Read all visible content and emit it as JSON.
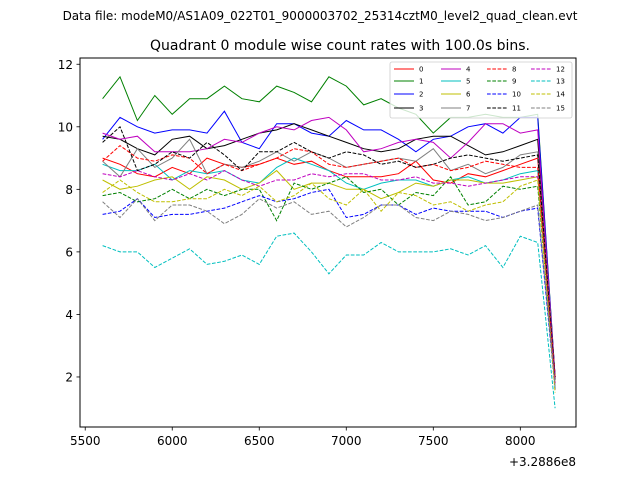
{
  "suptitle": "Data file: modeM0/AS1A09_022T01_9000003702_25314cztM0_level2_quad_clean.evt",
  "chart_data": {
    "type": "line",
    "title": "Quadrant 0 module wise count rates with 100.0s bins.",
    "xlabel": "",
    "ylabel": "",
    "x_offset_label": "+3.2886e8",
    "xlim": [
      5470,
      8320
    ],
    "ylim": [
      0.4,
      12.2
    ],
    "xticks": [
      5500,
      6000,
      6500,
      7000,
      7500,
      8000
    ],
    "yticks": [
      2,
      4,
      6,
      8,
      10,
      12
    ],
    "grid": false,
    "legend_position": "top-right",
    "x": [
      5600,
      5700,
      5800,
      5900,
      6000,
      6100,
      6200,
      6300,
      6400,
      6500,
      6600,
      6700,
      6800,
      6900,
      7000,
      7100,
      7200,
      7300,
      7400,
      7500,
      7600,
      7700,
      7800,
      7900,
      8000,
      8100,
      8200
    ],
    "series": [
      {
        "name": "0",
        "color": "#ff0000",
        "dash": "solid",
        "values": [
          9.0,
          8.8,
          8.5,
          8.4,
          8.7,
          8.5,
          9.0,
          8.8,
          8.7,
          8.8,
          9.0,
          8.8,
          8.9,
          8.6,
          8.4,
          8.4,
          8.4,
          8.5,
          8.9,
          8.3,
          8.2,
          8.5,
          8.4,
          8.6,
          8.8,
          9.0,
          2.0
        ]
      },
      {
        "name": "1",
        "color": "#008000",
        "dash": "solid",
        "values": [
          10.9,
          11.6,
          10.2,
          11.0,
          10.4,
          10.9,
          10.9,
          11.3,
          10.9,
          10.8,
          11.3,
          11.1,
          10.8,
          11.6,
          11.3,
          10.7,
          10.9,
          10.6,
          10.4,
          9.8,
          10.3,
          10.3,
          10.4,
          10.3,
          10.3,
          10.4,
          2.0
        ]
      },
      {
        "name": "2",
        "color": "#0000ff",
        "dash": "solid",
        "values": [
          9.6,
          10.3,
          10.0,
          9.8,
          9.9,
          9.9,
          9.8,
          10.5,
          9.5,
          9.3,
          10.1,
          10.1,
          9.8,
          9.7,
          10.2,
          9.9,
          9.9,
          9.6,
          9.2,
          9.6,
          9.7,
          10.0,
          10.1,
          9.8,
          10.3,
          10.3,
          2.0
        ]
      },
      {
        "name": "3",
        "color": "#000000",
        "dash": "solid",
        "values": [
          9.7,
          9.6,
          9.3,
          9.1,
          9.6,
          9.7,
          9.3,
          9.4,
          9.6,
          9.8,
          9.9,
          10.1,
          9.9,
          9.7,
          9.5,
          9.3,
          9.2,
          9.3,
          9.6,
          9.7,
          9.7,
          9.4,
          9.1,
          9.2,
          9.4,
          9.6,
          2.0
        ]
      },
      {
        "name": "4",
        "color": "#bf00bf",
        "dash": "solid",
        "values": [
          9.8,
          9.6,
          9.7,
          9.2,
          9.2,
          9.2,
          9.3,
          9.6,
          9.5,
          9.8,
          10.0,
          9.9,
          10.2,
          10.3,
          9.9,
          9.2,
          9.3,
          9.5,
          9.6,
          9.5,
          9.0,
          9.5,
          10.1,
          10.1,
          9.8,
          9.9,
          2.0
        ]
      },
      {
        "name": "5",
        "color": "#00bfbf",
        "dash": "solid",
        "values": [
          8.8,
          8.6,
          8.6,
          8.8,
          8.3,
          8.6,
          8.5,
          8.6,
          8.3,
          8.2,
          8.7,
          9.0,
          8.8,
          8.6,
          8.2,
          8.0,
          8.2,
          8.3,
          8.3,
          8.1,
          8.3,
          8.4,
          8.2,
          8.3,
          8.5,
          8.6,
          1.6
        ]
      },
      {
        "name": "6",
        "color": "#bfbf00",
        "dash": "solid",
        "values": [
          8.3,
          8.0,
          8.1,
          8.3,
          8.4,
          8.0,
          8.4,
          8.3,
          8.0,
          8.2,
          8.6,
          8.0,
          8.2,
          8.2,
          8.0,
          8.0,
          7.7,
          7.9,
          8.2,
          8.1,
          8.3,
          8.3,
          8.2,
          8.2,
          8.3,
          8.4,
          1.8
        ]
      },
      {
        "name": "7",
        "color": "#808080",
        "dash": "solid",
        "values": [
          8.9,
          8.4,
          9.3,
          8.7,
          9.0,
          9.6,
          8.5,
          8.8,
          8.7,
          8.9,
          9.2,
          8.9,
          9.2,
          9.0,
          8.7,
          8.8,
          8.9,
          9.0,
          8.9,
          9.3,
          8.6,
          8.8,
          8.5,
          8.7,
          9.1,
          9.2,
          2.0
        ]
      },
      {
        "name": "8",
        "color": "#ff0000",
        "dash": "dashed",
        "values": [
          8.9,
          9.4,
          9.0,
          8.9,
          9.1,
          9.0,
          8.5,
          8.8,
          8.6,
          8.8,
          9.0,
          9.3,
          9.2,
          8.8,
          8.7,
          8.8,
          8.9,
          9.0,
          8.7,
          8.8,
          8.6,
          8.7,
          8.9,
          8.8,
          8.7,
          8.7,
          2.0
        ]
      },
      {
        "name": "9",
        "color": "#008000",
        "dash": "dashed",
        "values": [
          7.8,
          7.9,
          7.6,
          7.7,
          8.0,
          7.7,
          8.0,
          7.8,
          8.0,
          8.0,
          7.0,
          8.2,
          8.0,
          8.2,
          8.4,
          7.9,
          8.0,
          7.5,
          7.9,
          7.8,
          8.4,
          7.5,
          7.6,
          8.1,
          8.0,
          8.1,
          1.8
        ]
      },
      {
        "name": "10",
        "color": "#0000ff",
        "dash": "dashed",
        "values": [
          7.2,
          7.3,
          7.7,
          7.1,
          7.2,
          7.2,
          7.3,
          7.4,
          7.6,
          7.8,
          7.6,
          7.7,
          7.9,
          8.0,
          7.1,
          7.2,
          7.5,
          7.5,
          7.2,
          7.4,
          7.3,
          7.3,
          7.3,
          7.1,
          7.3,
          7.4,
          1.6
        ]
      },
      {
        "name": "11",
        "color": "#000000",
        "dash": "dashed",
        "values": [
          9.5,
          10.0,
          8.6,
          8.8,
          9.2,
          9.0,
          9.5,
          9.1,
          8.6,
          9.2,
          9.2,
          9.5,
          9.2,
          9.0,
          9.2,
          9.1,
          8.8,
          8.9,
          8.7,
          8.8,
          9.0,
          9.1,
          9.0,
          8.9,
          9.0,
          9.1,
          1.9
        ]
      },
      {
        "name": "12",
        "color": "#bf00bf",
        "dash": "dashed",
        "values": [
          8.5,
          8.4,
          8.6,
          8.4,
          8.3,
          8.5,
          8.3,
          8.6,
          8.3,
          8.1,
          8.3,
          8.3,
          8.5,
          8.4,
          8.5,
          8.5,
          8.3,
          8.3,
          8.4,
          8.2,
          8.2,
          8.1,
          8.2,
          8.3,
          8.4,
          8.4,
          1.8
        ]
      },
      {
        "name": "13",
        "color": "#00bfbf",
        "dash": "dashed",
        "values": [
          6.2,
          6.0,
          6.0,
          5.5,
          5.8,
          6.1,
          5.6,
          5.7,
          5.9,
          5.6,
          6.5,
          6.6,
          6.0,
          5.3,
          5.9,
          5.9,
          6.3,
          6.0,
          6.0,
          6.0,
          6.1,
          5.9,
          6.2,
          5.5,
          6.5,
          6.3,
          1.0
        ]
      },
      {
        "name": "14",
        "color": "#bfbf00",
        "dash": "dashed",
        "values": [
          7.9,
          8.3,
          7.9,
          7.6,
          7.6,
          7.7,
          7.7,
          8.0,
          7.8,
          8.1,
          7.6,
          7.8,
          8.2,
          7.7,
          7.5,
          8.0,
          7.3,
          7.9,
          7.8,
          7.5,
          7.6,
          7.3,
          7.5,
          7.6,
          8.1,
          8.3,
          1.5
        ]
      },
      {
        "name": "15",
        "color": "#808080",
        "dash": "dashed",
        "values": [
          7.6,
          7.1,
          7.7,
          7.0,
          7.5,
          7.5,
          7.3,
          6.9,
          7.2,
          7.7,
          7.4,
          7.6,
          7.2,
          7.3,
          6.8,
          7.1,
          7.5,
          7.5,
          7.1,
          7.0,
          7.3,
          7.2,
          7.0,
          7.1,
          7.3,
          7.5,
          1.7
        ]
      }
    ]
  }
}
